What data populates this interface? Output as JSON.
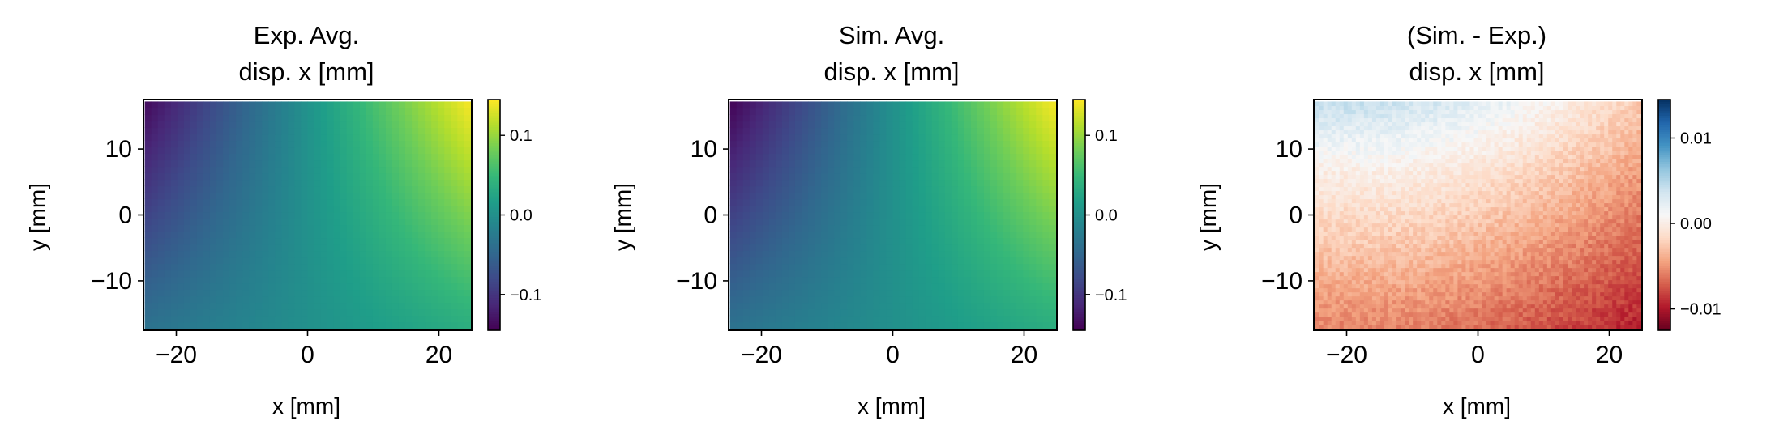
{
  "chart_data": [
    {
      "type": "heatmap",
      "title_lines": [
        "Exp. Avg.",
        "disp. x [mm]"
      ],
      "xlabel": "x [mm]",
      "ylabel": "y [mm]",
      "xlim": [
        -25,
        25
      ],
      "ylim": [
        -17.5,
        17.5
      ],
      "xticks": [
        -20,
        0,
        20
      ],
      "xtick_labels": [
        "−20",
        "0",
        "20"
      ],
      "yticks": [
        -10,
        0,
        10
      ],
      "ytick_labels": [
        "−10",
        "0",
        "10"
      ],
      "colormap": "viridis",
      "colorbar": {
        "min": -0.145,
        "max": 0.145,
        "ticks": [
          -0.1,
          0.0,
          0.1
        ],
        "tick_labels": [
          "−0.1",
          "0.0",
          "0.1"
        ]
      },
      "field": {
        "corner_values": {
          "top_left": -0.14,
          "top_right": 0.145,
          "bottom_left": -0.035,
          "bottom_right": 0.035
        }
      },
      "grid": false
    },
    {
      "type": "heatmap",
      "title_lines": [
        "Sim. Avg.",
        "disp. x [mm]"
      ],
      "xlabel": "x [mm]",
      "ylabel": "y [mm]",
      "xlim": [
        -25,
        25
      ],
      "ylim": [
        -17.5,
        17.5
      ],
      "xticks": [
        -20,
        0,
        20
      ],
      "xtick_labels": [
        "−20",
        "0",
        "20"
      ],
      "yticks": [
        -10,
        0,
        10
      ],
      "ytick_labels": [
        "−10",
        "0",
        "10"
      ],
      "colormap": "viridis",
      "colorbar": {
        "min": -0.145,
        "max": 0.145,
        "ticks": [
          -0.1,
          0.0,
          0.1
        ],
        "tick_labels": [
          "−0.1",
          "0.0",
          "0.1"
        ]
      },
      "field": {
        "corner_values": {
          "top_left": -0.145,
          "top_right": 0.145,
          "bottom_left": -0.035,
          "bottom_right": 0.035
        }
      },
      "grid": false
    },
    {
      "type": "heatmap",
      "title_lines": [
        "(Sim. - Exp.)",
        "disp. x [mm]"
      ],
      "xlabel": "x [mm]",
      "ylabel": "y [mm]",
      "xlim": [
        -25,
        25
      ],
      "ylim": [
        -17.5,
        17.5
      ],
      "xticks": [
        -20,
        0,
        20
      ],
      "xtick_labels": [
        "−20",
        "0",
        "20"
      ],
      "yticks": [
        -10,
        0,
        10
      ],
      "ytick_labels": [
        "−10",
        "0",
        "10"
      ],
      "colormap": "RdBu",
      "colorbar": {
        "min": -0.0125,
        "max": 0.0145,
        "ticks": [
          -0.01,
          0.0,
          0.01
        ],
        "tick_labels": [
          "−0.01",
          "0.00",
          "0.01"
        ]
      },
      "field": {
        "peak_positive": 0.014,
        "peak_negative": -0.012
      },
      "grid": false
    }
  ]
}
